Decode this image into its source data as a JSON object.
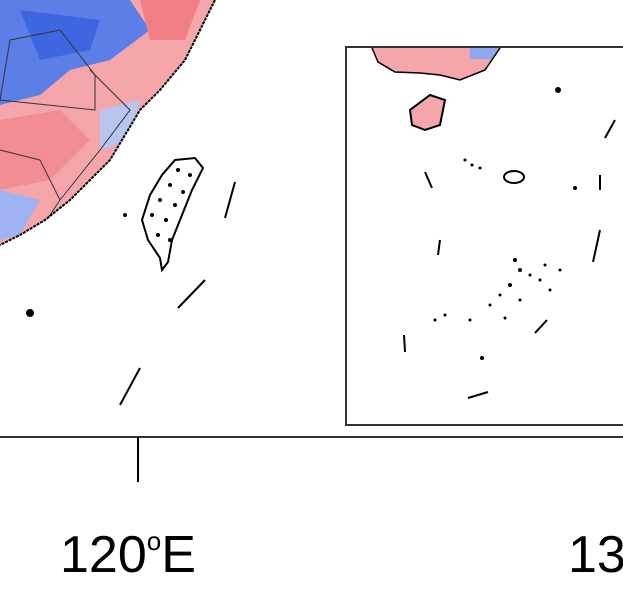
{
  "axis_labels": {
    "lon_120": {
      "number": "120",
      "degree": "o",
      "hemisphere": "E"
    },
    "lon_cut": "13"
  }
}
